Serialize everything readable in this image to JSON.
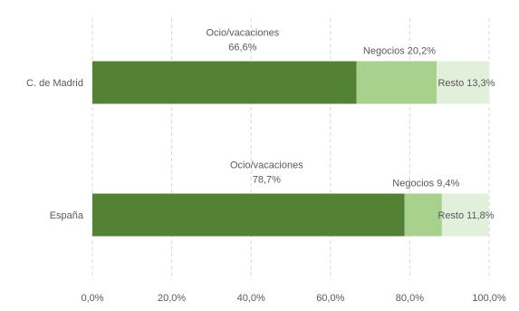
{
  "chart_data": {
    "type": "bar",
    "orientation": "horizontal",
    "stacked": true,
    "categories": [
      "C. de Madrid",
      "España"
    ],
    "series": [
      {
        "name": "Ocio/vacaciones",
        "values": [
          66.6,
          78.7
        ],
        "labels": [
          "Ocio/vacaciones\n66,6%",
          "Ocio/vacaciones\n78,7%"
        ],
        "color": "#548235"
      },
      {
        "name": "Negocios",
        "values": [
          20.2,
          9.4
        ],
        "labels": [
          "Negocios 20,2%",
          "Negocios 9,4%"
        ],
        "color": "#a9d18e"
      },
      {
        "name": "Resto",
        "values": [
          13.3,
          11.8
        ],
        "labels": [
          "Resto 13,3%",
          "Resto 11,8%"
        ],
        "color": "#e2efda"
      }
    ],
    "xlim": [
      0,
      100
    ],
    "x_ticks": [
      "0,0%",
      "20,0%",
      "40,0%",
      "60,0%",
      "80,0%",
      "100,0%"
    ],
    "grid": "vertical-dashed",
    "legend": "none"
  }
}
